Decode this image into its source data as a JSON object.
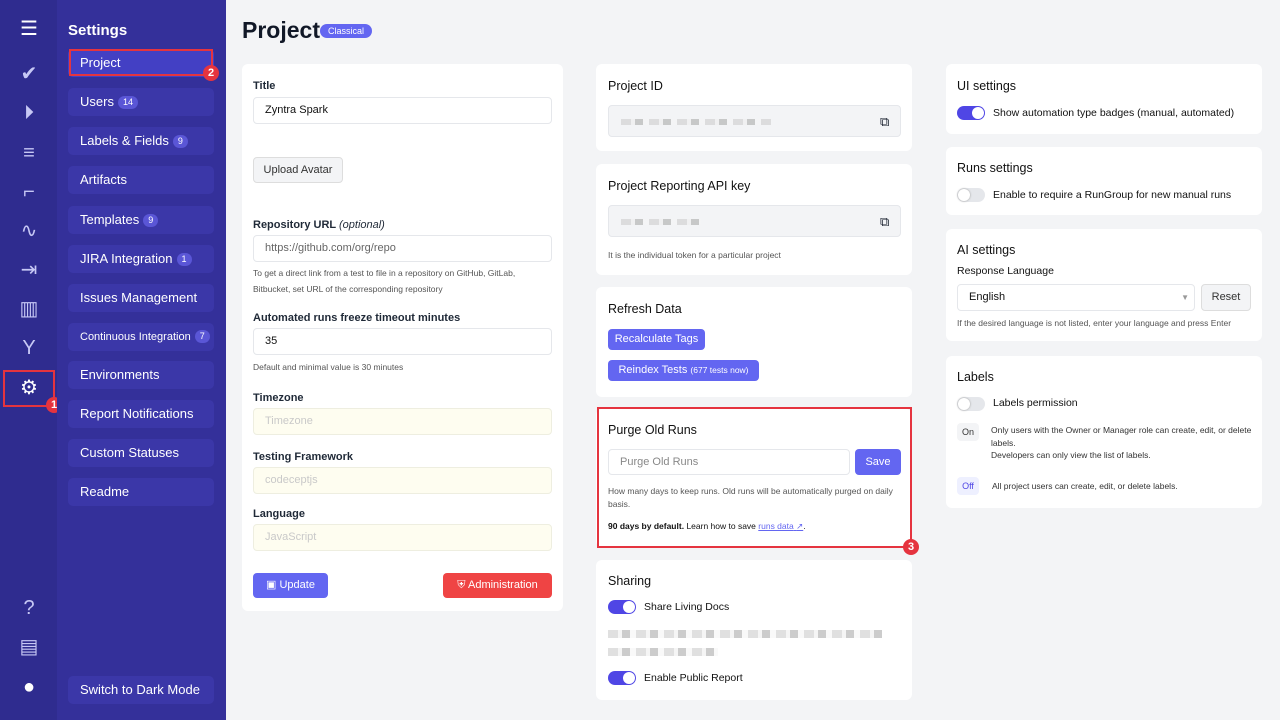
{
  "rail": {
    "icons": [
      "menu-icon",
      "check-icon",
      "play-circle-icon",
      "list-check-icon",
      "steps-icon",
      "pulse-icon",
      "import-icon",
      "chart-icon",
      "branch-icon",
      "gear-icon",
      "help-icon",
      "folder-icon",
      "avatar-icon"
    ]
  },
  "sidebar": {
    "title": "Settings",
    "items": [
      {
        "label": "Project"
      },
      {
        "label": "Users",
        "badge": "14"
      },
      {
        "label": "Labels & Fields",
        "badge": "9"
      },
      {
        "label": "Artifacts"
      },
      {
        "label": "Templates",
        "badge": "9"
      },
      {
        "label": "JIRA Integration",
        "badge": "1"
      },
      {
        "label": "Issues Management"
      },
      {
        "label": "Continuous Integration",
        "badge": "7"
      },
      {
        "label": "Environments"
      },
      {
        "label": "Report Notifications"
      },
      {
        "label": "Custom Statuses"
      },
      {
        "label": "Readme"
      }
    ],
    "dark_mode": "Switch to Dark Mode"
  },
  "annotations": [
    "1",
    "2",
    "3"
  ],
  "header": {
    "title": "Project",
    "badge": "Classical"
  },
  "form": {
    "title_label": "Title",
    "title_value": "Zyntra Spark",
    "upload": "Upload Avatar",
    "repo_label": "Repository URL",
    "repo_optional": "(optional)",
    "repo_value": "https://github.com/org/repo",
    "repo_help": "To get a direct link from a test to file in a repository on GitHub, GitLab, Bitbucket, set URL of the corresponding repository",
    "freeze_label": "Automated runs freeze timeout minutes",
    "freeze_value": "35",
    "freeze_help": "Default and minimal value is 30 minutes",
    "tz_label": "Timezone",
    "tz_placeholder": "Timezone",
    "fw_label": "Testing Framework",
    "fw_placeholder": "codeceptjs",
    "lang_label": "Language",
    "lang_placeholder": "JavaScript",
    "update": "Update",
    "admin": "Administration"
  },
  "project_id": {
    "title": "Project ID"
  },
  "api_key": {
    "title": "Project Reporting API key",
    "help": "It is the individual token for a particular project"
  },
  "refresh": {
    "title": "Refresh Data",
    "recalc": "Recalculate Tags",
    "reindex": "Reindex Tests",
    "reindex_note": "(677 tests now)"
  },
  "purge": {
    "title": "Purge Old Runs",
    "placeholder": "Purge Old Runs",
    "save": "Save",
    "help": "How many days to keep runs. Old runs will be automatically purged on daily basis.",
    "default_bold": "90 days by default.",
    "learn": "Learn how to save",
    "link": "runs data",
    "end": "."
  },
  "sharing": {
    "title": "Sharing",
    "living_docs": "Share Living Docs",
    "public_report": "Enable Public Report",
    "living_docs_on": true,
    "public_report_on": true
  },
  "ui": {
    "title": "UI settings",
    "badges": "Show automation type badges (manual, automated)",
    "badges_on": true
  },
  "runs": {
    "title": "Runs settings",
    "rungroup": "Enable to require a RunGroup for new manual runs",
    "rungroup_on": false
  },
  "ai": {
    "title": "AI settings",
    "lang_label": "Response Language",
    "lang_value": "English",
    "reset": "Reset",
    "help": "If the desired language is not listed, enter your language and press Enter"
  },
  "labels": {
    "title": "Labels",
    "perm": "Labels permission",
    "perm_on": false,
    "on": "On",
    "on_text": "Only users with the Owner or Manager role can create, edit, or delete labels.",
    "on_text2": "Developers can only view the list of labels.",
    "off": "Off",
    "off_text": "All project users can create, edit, or delete labels."
  }
}
